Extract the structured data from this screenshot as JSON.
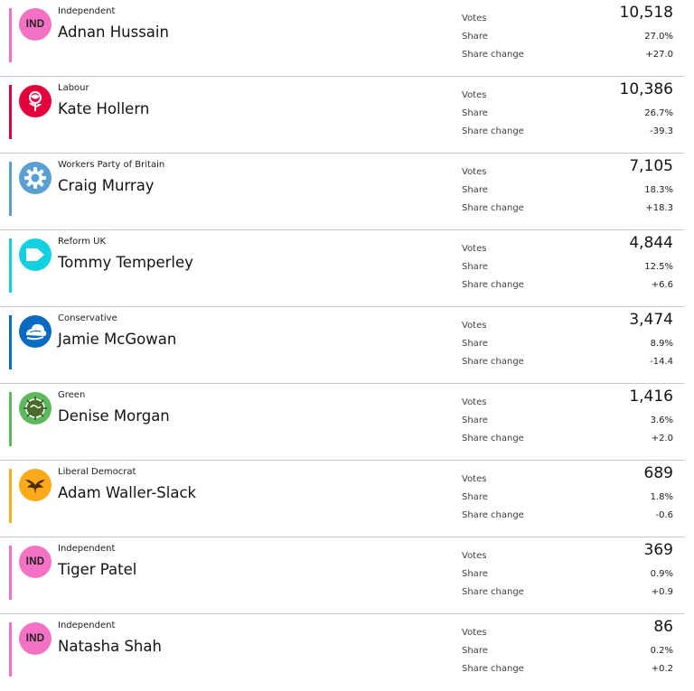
{
  "labels": {
    "votes": "Votes",
    "share": "Share",
    "share_change": "Share change"
  },
  "candidates": [
    {
      "party": "Independent",
      "name": "Adnan Hussain",
      "votes": "10,518",
      "share": "27.0%",
      "change": "+27.0",
      "color": "#f372c4",
      "logo": "independent-badge",
      "logo_text": "IND"
    },
    {
      "party": "Labour",
      "name": "Kate Hollern",
      "votes": "10,386",
      "share": "26.7%",
      "change": "-39.3",
      "color": "#e4003b",
      "logo": "labour-rose-icon"
    },
    {
      "party": "Workers Party of Britain",
      "name": "Craig Murray",
      "votes": "7,105",
      "share": "18.3%",
      "change": "+18.3",
      "color": "#5a9fd4",
      "logo": "workers-party-gear-icon"
    },
    {
      "party": "Reform UK",
      "name": "Tommy Temperley",
      "votes": "4,844",
      "share": "12.5%",
      "change": "+6.6",
      "color": "#12d0e0",
      "logo": "reform-arrow-icon"
    },
    {
      "party": "Conservative",
      "name": "Jamie McGowan",
      "votes": "3,474",
      "share": "8.9%",
      "change": "-14.4",
      "color": "#0a6bc4",
      "logo": "conservative-tree-icon"
    },
    {
      "party": "Green",
      "name": "Denise Morgan",
      "votes": "1,416",
      "share": "3.6%",
      "change": "+2.0",
      "color": "#5bb85d",
      "logo": "green-earth-icon"
    },
    {
      "party": "Liberal Democrat",
      "name": "Adam Waller-Slack",
      "votes": "689",
      "share": "1.8%",
      "change": "-0.6",
      "color": "#fbaa1a",
      "logo": "libdem-bird-icon"
    },
    {
      "party": "Independent",
      "name": "Tiger Patel",
      "votes": "369",
      "share": "0.9%",
      "change": "+0.9",
      "color": "#f372c4",
      "logo": "independent-badge",
      "logo_text": "IND"
    },
    {
      "party": "Independent",
      "name": "Natasha Shah",
      "votes": "86",
      "share": "0.2%",
      "change": "+0.2",
      "color": "#f372c4",
      "logo": "independent-badge",
      "logo_text": "IND"
    }
  ]
}
